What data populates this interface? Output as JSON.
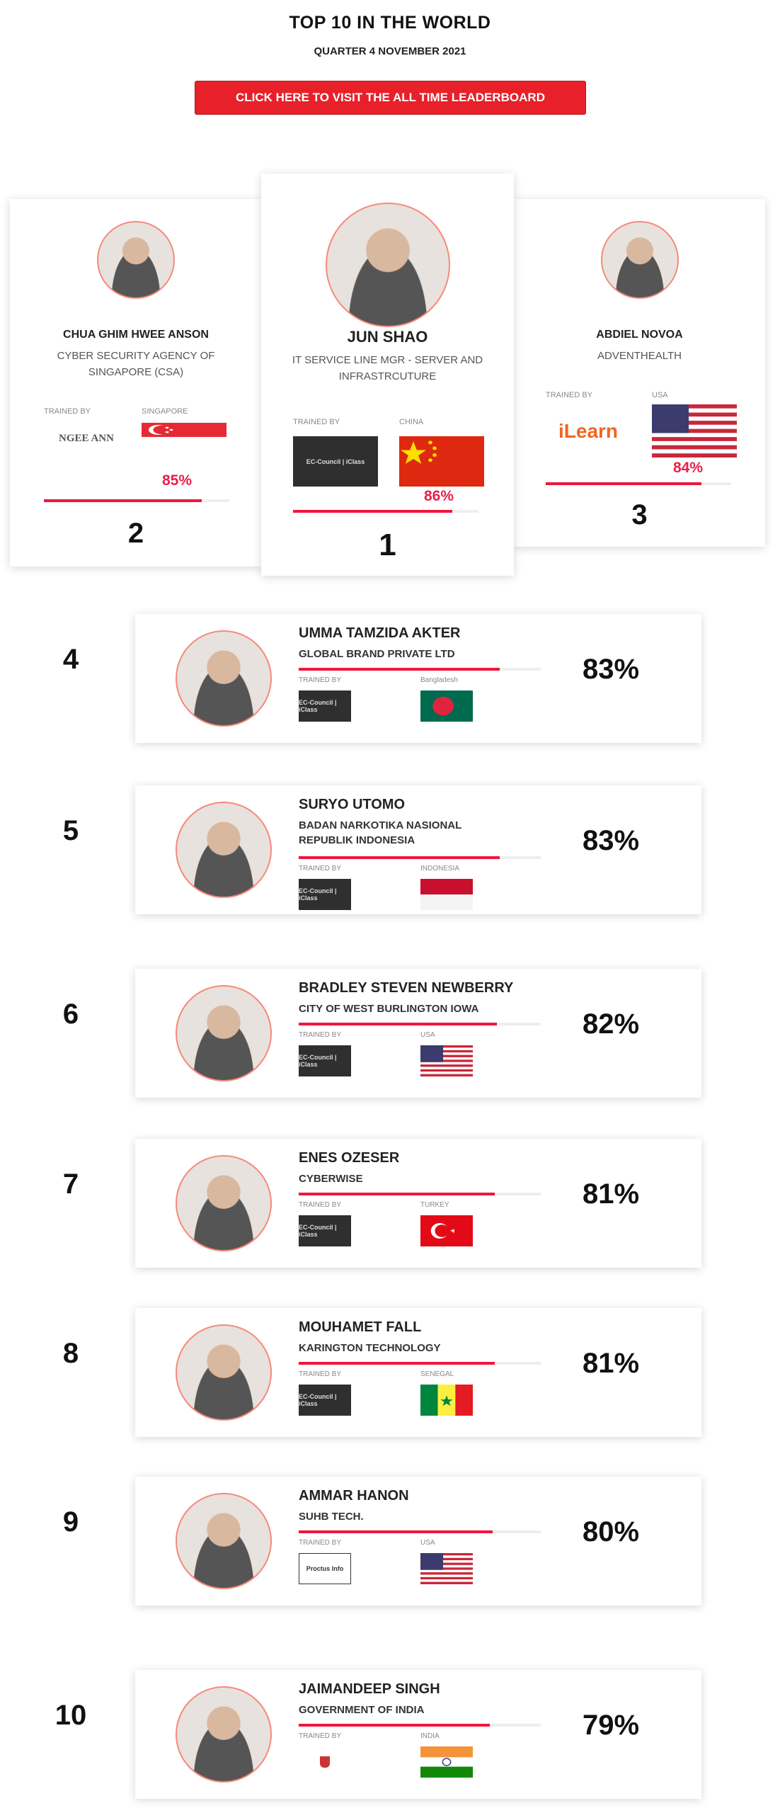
{
  "header": {
    "title": "TOP 10 IN THE WORLD",
    "subtitle": "QUARTER 4 NOVEMBER 2021",
    "cta_label": "CLICK HERE TO VISIT THE ALL TIME LEADERBOARD"
  },
  "accent": "#f0163c",
  "trained_by_label": "TRAINED BY",
  "podium": [
    {
      "rank": "2",
      "name": "CHUA GHIM HWEE ANSON",
      "org": "CYBER SECURITY AGENCY OF SINGAPORE (CSA)",
      "country": "SINGAPORE",
      "flag": "sg",
      "trainer": "NGEE ANN",
      "percent": "85%",
      "score": 85
    },
    {
      "rank": "1",
      "name": "JUN SHAO",
      "org": "IT SERVICE LINE MGR - SERVER AND INFRASTRCUTURE",
      "country": "CHINA",
      "flag": "cn",
      "trainer": "EC-Council | iClass",
      "percent": "86%",
      "score": 86
    },
    {
      "rank": "3",
      "name": "ABDIEL NOVOA",
      "org": "ADVENTHEALTH",
      "country": "USA",
      "flag": "us",
      "trainer": "iLearn",
      "percent": "84%",
      "score": 84
    }
  ],
  "rows": [
    {
      "rank": "4",
      "name": "UMMA TAMZIDA AKTER",
      "org": "GLOBAL BRAND PRIVATE LTD",
      "country": "Bangladesh",
      "flag": "bd",
      "trainer": "EC-Council | iClass",
      "percent": "83%",
      "score": 83
    },
    {
      "rank": "5",
      "name": "SURYO UTOMO",
      "org": "BADAN NARKOTIKA NASIONAL REPUBLIK INDONESIA",
      "country": "INDONESIA",
      "flag": "id",
      "trainer": "EC-Council | iClass",
      "percent": "83%",
      "score": 83
    },
    {
      "rank": "6",
      "name": "BRADLEY STEVEN NEWBERRY",
      "org": "CITY OF WEST BURLINGTON IOWA",
      "country": "USA",
      "flag": "us",
      "trainer": "EC-Council | iClass",
      "percent": "82%",
      "score": 82
    },
    {
      "rank": "7",
      "name": "ENES OZESER",
      "org": "CYBERWISE",
      "country": "TURKEY",
      "flag": "tr",
      "trainer": "EC-Council | iClass",
      "percent": "81%",
      "score": 81
    },
    {
      "rank": "8",
      "name": "MOUHAMET FALL",
      "org": "KARINGTON TECHNOLOGY",
      "country": "SENEGAL",
      "flag": "sn",
      "trainer": "EC-Council | iClass",
      "percent": "81%",
      "score": 81
    },
    {
      "rank": "9",
      "name": "AMMAR HANON",
      "org": "SUHB TECH.",
      "country": "USA",
      "flag": "us",
      "trainer": "Proctus Info",
      "percent": "80%",
      "score": 80
    },
    {
      "rank": "10",
      "name": "JAIMANDEEP SINGH",
      "org": "GOVERNMENT OF INDIA",
      "country": "INDIA",
      "flag": "in",
      "trainer": "Institute logo",
      "percent": "79%",
      "score": 79
    }
  ]
}
